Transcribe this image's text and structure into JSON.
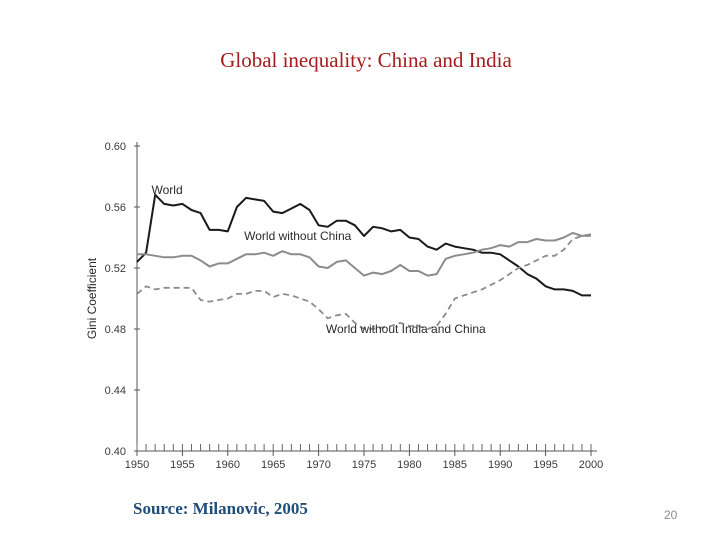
{
  "slide": {
    "title": "Global inequality: China and India",
    "source": "Source: Milanovic, 2005",
    "page_number": "20"
  },
  "chart_data": {
    "type": "line",
    "title": "Global inequality: China and India",
    "xlabel": "",
    "ylabel": "Gini Coefficient",
    "xlim": [
      1950,
      2000
    ],
    "ylim": [
      0.4,
      0.6
    ],
    "xticks": [
      1950,
      1955,
      1960,
      1965,
      1970,
      1975,
      1980,
      1985,
      1990,
      1995,
      2000
    ],
    "xtick_labels": [
      "1950",
      "1955",
      "1960",
      "1965",
      "1970",
      "1975",
      "1980",
      "1985",
      "1990",
      "1995",
      "2000"
    ],
    "yticks": [
      0.4,
      0.44,
      0.48,
      0.52,
      0.56,
      0.6
    ],
    "ytick_labels": [
      "0.40",
      "0.44",
      "0.48",
      "0.52",
      "0.56",
      "0.60"
    ],
    "grid": false,
    "legend": "inline labels",
    "series": [
      {
        "name": "World",
        "color": "#1a1a1a",
        "dash": "solid",
        "x": [
          1950,
          1951,
          1952,
          1953,
          1954,
          1955,
          1956,
          1957,
          1958,
          1959,
          1960,
          1961,
          1962,
          1963,
          1964,
          1965,
          1966,
          1967,
          1968,
          1969,
          1970,
          1971,
          1972,
          1973,
          1974,
          1975,
          1976,
          1977,
          1978,
          1979,
          1980,
          1981,
          1982,
          1983,
          1984,
          1985,
          1986,
          1987,
          1988,
          1989,
          1990,
          1991,
          1992,
          1993,
          1994,
          1995,
          1996,
          1997,
          1998,
          1999,
          2000
        ],
        "values": [
          0.524,
          0.53,
          0.568,
          0.562,
          0.561,
          0.562,
          0.558,
          0.556,
          0.545,
          0.545,
          0.544,
          0.56,
          0.566,
          0.565,
          0.564,
          0.557,
          0.556,
          0.559,
          0.562,
          0.558,
          0.548,
          0.547,
          0.551,
          0.551,
          0.548,
          0.541,
          0.547,
          0.546,
          0.544,
          0.545,
          0.54,
          0.539,
          0.534,
          0.532,
          0.536,
          0.534,
          0.533,
          0.532,
          0.53,
          0.53,
          0.529,
          0.525,
          0.521,
          0.516,
          0.513,
          0.508,
          0.506,
          0.506,
          0.505,
          0.502,
          0.502
        ]
      },
      {
        "name": "World without China",
        "color": "#8c8c8c",
        "dash": "solid",
        "x": [
          1950,
          1951,
          1952,
          1953,
          1954,
          1955,
          1956,
          1957,
          1958,
          1959,
          1960,
          1961,
          1962,
          1963,
          1964,
          1965,
          1966,
          1967,
          1968,
          1969,
          1970,
          1971,
          1972,
          1973,
          1974,
          1975,
          1976,
          1977,
          1978,
          1979,
          1980,
          1981,
          1982,
          1983,
          1984,
          1985,
          1986,
          1987,
          1988,
          1989,
          1990,
          1991,
          1992,
          1993,
          1994,
          1995,
          1996,
          1997,
          1998,
          1999,
          2000
        ],
        "values": [
          0.529,
          0.529,
          0.528,
          0.527,
          0.527,
          0.528,
          0.528,
          0.525,
          0.521,
          0.523,
          0.523,
          0.526,
          0.529,
          0.529,
          0.53,
          0.528,
          0.531,
          0.529,
          0.529,
          0.527,
          0.521,
          0.52,
          0.524,
          0.525,
          0.52,
          0.515,
          0.517,
          0.516,
          0.518,
          0.522,
          0.518,
          0.518,
          0.515,
          0.516,
          0.526,
          0.528,
          0.529,
          0.53,
          0.532,
          0.533,
          0.535,
          0.534,
          0.537,
          0.537,
          0.539,
          0.538,
          0.538,
          0.54,
          0.543,
          0.541,
          0.542
        ]
      },
      {
        "name": "World without India and China",
        "color": "#8c8c8c",
        "dash": "dashed",
        "x": [
          1950,
          1951,
          1952,
          1953,
          1954,
          1955,
          1956,
          1957,
          1958,
          1959,
          1960,
          1961,
          1962,
          1963,
          1964,
          1965,
          1966,
          1967,
          1968,
          1969,
          1970,
          1971,
          1972,
          1973,
          1974,
          1975,
          1976,
          1977,
          1978,
          1979,
          1980,
          1981,
          1982,
          1983,
          1984,
          1985,
          1986,
          1987,
          1988,
          1989,
          1990,
          1991,
          1992,
          1993,
          1994,
          1995,
          1996,
          1997,
          1998,
          1999,
          2000
        ],
        "values": [
          0.503,
          0.508,
          0.506,
          0.507,
          0.507,
          0.507,
          0.507,
          0.499,
          0.498,
          0.499,
          0.5,
          0.503,
          0.503,
          0.505,
          0.505,
          0.501,
          0.503,
          0.502,
          0.5,
          0.498,
          0.493,
          0.487,
          0.489,
          0.49,
          0.484,
          0.48,
          0.48,
          0.481,
          0.482,
          0.484,
          0.482,
          0.482,
          0.48,
          0.482,
          0.49,
          0.5,
          0.502,
          0.504,
          0.506,
          0.509,
          0.512,
          0.516,
          0.52,
          0.522,
          0.525,
          0.528,
          0.528,
          0.532,
          0.539,
          0.541,
          0.541
        ]
      }
    ],
    "series_labels": [
      {
        "text": "World",
        "at_x": 1951.6,
        "at_y": 0.5685
      },
      {
        "text": "World without China",
        "at_x": 1961.8,
        "at_y": 0.5385
      },
      {
        "text": "World without India and China",
        "at_x": 1970.8,
        "at_y": 0.4775
      }
    ]
  }
}
